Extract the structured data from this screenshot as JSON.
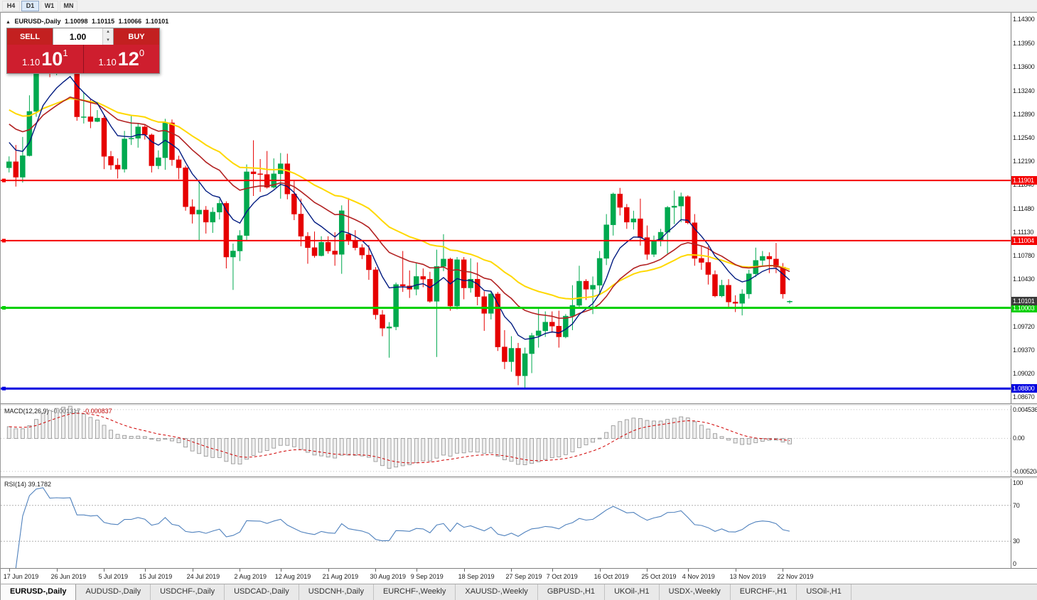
{
  "toolbar": {
    "timeframes": [
      "H4",
      "D1",
      "W1",
      "MN"
    ],
    "active": "D1"
  },
  "icons": {
    "collapse_arrow": "▲",
    "spin_up": "▴",
    "spin_down": "▾"
  },
  "header": {
    "symbol": "EURUSD-,Daily",
    "open": "1.10098",
    "high": "1.10115",
    "low": "1.10066",
    "close": "1.10101"
  },
  "trade_widget": {
    "sell_label": "SELL",
    "buy_label": "BUY",
    "volume": "1.00",
    "sell_price_prefix": "1.10",
    "sell_price_big": "10",
    "sell_price_sup": "1",
    "buy_price_prefix": "1.10",
    "buy_price_big": "12",
    "buy_price_sup": "0"
  },
  "tabbar": {
    "tabs": [
      {
        "label": "EURUSD-,Daily",
        "active": true
      },
      {
        "label": "AUDUSD-,Daily",
        "active": false
      },
      {
        "label": "USDCHF-,Daily",
        "active": false
      },
      {
        "label": "USDCAD-,Daily",
        "active": false
      },
      {
        "label": "USDCNH-,Daily",
        "active": false
      },
      {
        "label": "EURCHF-,Weekly",
        "active": false
      },
      {
        "label": "XAUUSD-,Weekly",
        "active": false
      },
      {
        "label": "GBPUSD-,H1",
        "active": false
      },
      {
        "label": "UKOil-,H1",
        "active": false
      },
      {
        "label": "USDX-,Weekly",
        "active": false
      },
      {
        "label": "EURCHF-,H1",
        "active": false
      },
      {
        "label": "USOil-,H1",
        "active": false
      }
    ]
  },
  "chart_data": {
    "type": "candlestick",
    "symbol": "EURUSD-",
    "timeframe": "Daily",
    "title": "EURUSD-,Daily",
    "current_ohlc": {
      "open": 1.10098,
      "high": 1.10115,
      "low": 1.10066,
      "close": 1.10101
    },
    "colors": {
      "up": "#00a94f",
      "down": "#e60000"
    },
    "price_scale": {
      "top": 1.144,
      "bottom": 1.0858
    },
    "y_axis": [
      "1.14300",
      "1.13950",
      "1.13600",
      "1.13240",
      "1.12890",
      "1.12540",
      "1.12190",
      "1.11840",
      "1.11480",
      "1.11130",
      "1.10780",
      "1.10430",
      "1.10080",
      "1.09720",
      "1.09370",
      "1.09020",
      "1.08670"
    ],
    "bid": {
      "value": 1.10101,
      "label": "1.10101",
      "color": "#3c3c3c"
    },
    "hlines": [
      {
        "value": 1.11901,
        "label": "1.11901",
        "color": "#f40000",
        "width": 2
      },
      {
        "value": 1.11004,
        "label": "1.11004",
        "color": "#f40000",
        "width": 2
      },
      {
        "value": 1.10003,
        "label": "1.10003",
        "color": "#00d000",
        "width": 3
      },
      {
        "value": 1.088,
        "label": "1.08800",
        "color": "#0000e0",
        "width": 3
      }
    ],
    "moving_averages": [
      {
        "name": "slow-ma",
        "period": 34,
        "color": "#ffd800",
        "width": 2,
        "seed": 1.13
      },
      {
        "name": "mid-ma",
        "period": 20,
        "color": "#b22222",
        "width": 1.6,
        "seed": 1.128
      },
      {
        "name": "fast-ma",
        "period": 8,
        "color": "#001a80",
        "width": 1.4,
        "seed": 1.1255
      }
    ],
    "date_ticks": [
      {
        "i": 0,
        "label": "17 Jun 2019"
      },
      {
        "i": 7,
        "label": "26 Jun 2019"
      },
      {
        "i": 14,
        "label": "5 Jul 2019"
      },
      {
        "i": 20,
        "label": "15 Jul 2019"
      },
      {
        "i": 27,
        "label": "24 Jul 2019"
      },
      {
        "i": 34,
        "label": "2 Aug 2019"
      },
      {
        "i": 40,
        "label": "12 Aug 2019"
      },
      {
        "i": 47,
        "label": "21 Aug 2019"
      },
      {
        "i": 54,
        "label": "30 Aug 2019"
      },
      {
        "i": 60,
        "label": "9 Sep 2019"
      },
      {
        "i": 67,
        "label": "18 Sep 2019"
      },
      {
        "i": 74,
        "label": "27 Sep 2019"
      },
      {
        "i": 80,
        "label": "7 Oct 2019"
      },
      {
        "i": 87,
        "label": "16 Oct 2019"
      },
      {
        "i": 94,
        "label": "25 Oct 2019"
      },
      {
        "i": 100,
        "label": "4 Nov 2019"
      },
      {
        "i": 107,
        "label": "13 Nov 2019"
      },
      {
        "i": 114,
        "label": "22 Nov 2019"
      }
    ],
    "candles": [
      [
        1.1209,
        1.1226,
        1.1202,
        1.1218
      ],
      [
        1.1218,
        1.1243,
        1.1181,
        1.1195
      ],
      [
        1.1195,
        1.1255,
        1.1187,
        1.1227
      ],
      [
        1.1227,
        1.1317,
        1.1226,
        1.1293
      ],
      [
        1.1293,
        1.1378,
        1.1285,
        1.1369
      ],
      [
        1.1369,
        1.1405,
        1.1362,
        1.1399
      ],
      [
        1.1399,
        1.1412,
        1.1344,
        1.1365
      ],
      [
        1.1365,
        1.1391,
        1.1347,
        1.137
      ],
      [
        1.137,
        1.139,
        1.1357,
        1.1369
      ],
      [
        1.1369,
        1.1394,
        1.1351,
        1.1373
      ],
      [
        1.1365,
        1.1368,
        1.1279,
        1.1285
      ],
      [
        1.1285,
        1.1322,
        1.1275,
        1.1285
      ],
      [
        1.1285,
        1.1312,
        1.1268,
        1.1278
      ],
      [
        1.1278,
        1.1295,
        1.1277,
        1.1283
      ],
      [
        1.1283,
        1.1288,
        1.1207,
        1.1226
      ],
      [
        1.1226,
        1.1234,
        1.1206,
        1.1213
      ],
      [
        1.1213,
        1.1223,
        1.1193,
        1.1207
      ],
      [
        1.1207,
        1.1264,
        1.1202,
        1.1252
      ],
      [
        1.1252,
        1.1286,
        1.1243,
        1.1253
      ],
      [
        1.1253,
        1.1275,
        1.1239,
        1.127
      ],
      [
        1.127,
        1.1274,
        1.1251,
        1.1258
      ],
      [
        1.1258,
        1.126,
        1.1202,
        1.1212
      ],
      [
        1.1212,
        1.1235,
        1.1207,
        1.1224
      ],
      [
        1.1224,
        1.1282,
        1.1206,
        1.1276
      ],
      [
        1.1276,
        1.1281,
        1.1212,
        1.1221
      ],
      [
        1.1221,
        1.1227,
        1.1192,
        1.1209
      ],
      [
        1.1209,
        1.1212,
        1.1145,
        1.1151
      ],
      [
        1.1151,
        1.1162,
        1.1126,
        1.114
      ],
      [
        1.114,
        1.1187,
        1.1101,
        1.1146
      ],
      [
        1.1146,
        1.1152,
        1.1111,
        1.1128
      ],
      [
        1.1128,
        1.115,
        1.1112,
        1.1143
      ],
      [
        1.1143,
        1.1162,
        1.1132,
        1.1156
      ],
      [
        1.1156,
        1.1159,
        1.1059,
        1.1076
      ],
      [
        1.1076,
        1.1096,
        1.1027,
        1.1085
      ],
      [
        1.1085,
        1.1116,
        1.107,
        1.1108
      ],
      [
        1.1108,
        1.1214,
        1.1101,
        1.1203
      ],
      [
        1.1203,
        1.125,
        1.1167,
        1.12
      ],
      [
        1.12,
        1.1222,
        1.1173,
        1.1199
      ],
      [
        1.1199,
        1.1234,
        1.1178,
        1.118
      ],
      [
        1.118,
        1.1223,
        1.1178,
        1.12
      ],
      [
        1.12,
        1.1231,
        1.1163,
        1.1215
      ],
      [
        1.1215,
        1.123,
        1.1162,
        1.117
      ],
      [
        1.117,
        1.1191,
        1.1131,
        1.114
      ],
      [
        1.114,
        1.1163,
        1.1092,
        1.1107
      ],
      [
        1.1107,
        1.1113,
        1.1066,
        1.109
      ],
      [
        1.109,
        1.1114,
        1.1075,
        1.1078
      ],
      [
        1.1078,
        1.1107,
        1.1077,
        1.1098
      ],
      [
        1.1098,
        1.1107,
        1.1081,
        1.1085
      ],
      [
        1.1085,
        1.1113,
        1.1063,
        1.108
      ],
      [
        1.108,
        1.1153,
        1.1051,
        1.1145
      ],
      [
        1.111,
        1.1164,
        1.1094,
        1.1101
      ],
      [
        1.1101,
        1.1116,
        1.1086,
        1.109
      ],
      [
        1.109,
        1.1095,
        1.1073,
        1.1079
      ],
      [
        1.1079,
        1.1094,
        1.1042,
        1.1057
      ],
      [
        1.1057,
        1.1061,
        1.0983,
        1.099
      ],
      [
        1.099,
        1.0997,
        1.0958,
        1.097
      ],
      [
        1.097,
        1.0979,
        1.0926,
        1.0972
      ],
      [
        1.0972,
        1.1038,
        1.0967,
        1.1035
      ],
      [
        1.1035,
        1.1085,
        1.1024,
        1.1033
      ],
      [
        1.1033,
        1.1056,
        1.1015,
        1.1028
      ],
      [
        1.1028,
        1.1067,
        1.1019,
        1.1047
      ],
      [
        1.1047,
        1.1059,
        1.1031,
        1.1043
      ],
      [
        1.1043,
        1.1054,
        1.1008,
        1.101
      ],
      [
        1.101,
        1.1087,
        1.0927,
        1.1062
      ],
      [
        1.1062,
        1.111,
        1.1055,
        1.1073
      ],
      [
        1.1073,
        1.1075,
        1.0996,
        1.1003
      ],
      [
        1.1003,
        1.1076,
        1.0998,
        1.1072
      ],
      [
        1.1072,
        1.1076,
        1.1013,
        1.103
      ],
      [
        1.103,
        1.1074,
        1.1023,
        1.1043
      ],
      [
        1.1043,
        1.1068,
        1.1004,
        1.1017
      ],
      [
        1.1017,
        1.1025,
        1.0966,
        1.0992
      ],
      [
        1.0992,
        1.1024,
        1.0983,
        1.1021
      ],
      [
        1.1021,
        1.1024,
        1.0936,
        1.0942
      ],
      [
        1.0942,
        1.0967,
        1.0909,
        1.092
      ],
      [
        1.092,
        1.0958,
        1.0905,
        1.094
      ],
      [
        1.094,
        1.0948,
        1.0885,
        1.0899
      ],
      [
        1.0899,
        1.0941,
        1.0879,
        1.0932
      ],
      [
        1.0932,
        1.0963,
        1.0903,
        1.0959
      ],
      [
        1.0959,
        1.0999,
        1.0941,
        1.0966
      ],
      [
        1.0966,
        1.0995,
        1.0957,
        1.0979
      ],
      [
        1.0979,
        1.0995,
        1.0963,
        1.0973
      ],
      [
        1.0973,
        1.0996,
        1.0941,
        1.0957
      ],
      [
        1.0957,
        1.0991,
        1.0955,
        1.0988
      ],
      [
        1.0988,
        1.1034,
        1.0967,
        1.1004
      ],
      [
        1.1004,
        1.1063,
        1.1002,
        1.104
      ],
      [
        1.104,
        1.1043,
        1.1012,
        1.1028
      ],
      [
        1.1028,
        1.1047,
        1.0991,
        1.1034
      ],
      [
        1.1034,
        1.1085,
        1.1023,
        1.1074
      ],
      [
        1.1074,
        1.114,
        1.1064,
        1.1124
      ],
      [
        1.1124,
        1.1172,
        1.1108,
        1.117
      ],
      [
        1.117,
        1.1179,
        1.1138,
        1.115
      ],
      [
        1.115,
        1.1155,
        1.1118,
        1.1128
      ],
      [
        1.1128,
        1.1145,
        1.1117,
        1.1133
      ],
      [
        1.1133,
        1.1163,
        1.1093,
        1.1105
      ],
      [
        1.1105,
        1.1123,
        1.1072,
        1.108
      ],
      [
        1.108,
        1.1108,
        1.1076,
        1.11
      ],
      [
        1.11,
        1.1118,
        1.1092,
        1.1113
      ],
      [
        1.1113,
        1.1152,
        1.1081,
        1.115
      ],
      [
        1.115,
        1.1175,
        1.1125,
        1.1152
      ],
      [
        1.1152,
        1.1172,
        1.1128,
        1.1166
      ],
      [
        1.1166,
        1.1168,
        1.1125,
        1.1127
      ],
      [
        1.1127,
        1.114,
        1.1063,
        1.1074
      ],
      [
        1.1074,
        1.1093,
        1.1057,
        1.1068
      ],
      [
        1.1068,
        1.1092,
        1.1035,
        1.105
      ],
      [
        1.105,
        1.1056,
        1.1016,
        1.1018
      ],
      [
        1.1018,
        1.1042,
        1.1016,
        1.1034
      ],
      [
        1.1034,
        1.1043,
        1.1002,
        1.1009
      ],
      [
        1.1009,
        1.1019,
        1.0994,
        1.1007
      ],
      [
        1.1007,
        1.1028,
        1.0989,
        1.1021
      ],
      [
        1.1021,
        1.1057,
        1.1014,
        1.1051
      ],
      [
        1.1051,
        1.109,
        1.1046,
        1.1071
      ],
      [
        1.1071,
        1.1085,
        1.1063,
        1.1077
      ],
      [
        1.1077,
        1.1083,
        1.1052,
        1.1073
      ],
      [
        1.1073,
        1.1097,
        1.1052,
        1.1061
      ],
      [
        1.1061,
        1.1067,
        1.1014,
        1.1021
      ],
      [
        1.10098,
        1.10115,
        1.10066,
        1.10101
      ]
    ],
    "macd": {
      "label": "MACD(12,26,9)",
      "value_main": "-0.001317",
      "value_signal": "-0.000837",
      "fast": 12,
      "slow": 26,
      "signal": 9,
      "seed_offset": 0.002,
      "scale_top": 0.0052,
      "scale_bottom": -0.006,
      "axis": [
        {
          "v": 0.004536,
          "label": "0.004536"
        },
        {
          "v": 0,
          "label": "0.00"
        },
        {
          "v": -0.005204,
          "label": "-0.005204"
        }
      ],
      "histogram_fill": "#efefef",
      "histogram_stroke": "#8f8f8f",
      "signal_color": "#d00000"
    },
    "rsi": {
      "label": "RSI(14)",
      "value": "39.1782",
      "period": 14,
      "color": "#4f81bd",
      "levels": [
        70,
        30
      ],
      "axis": [
        {
          "v": 100,
          "label": "100"
        },
        {
          "v": 70,
          "label": "70"
        },
        {
          "v": 30,
          "label": "30"
        },
        {
          "v": 0,
          "label": "0"
        }
      ]
    }
  }
}
